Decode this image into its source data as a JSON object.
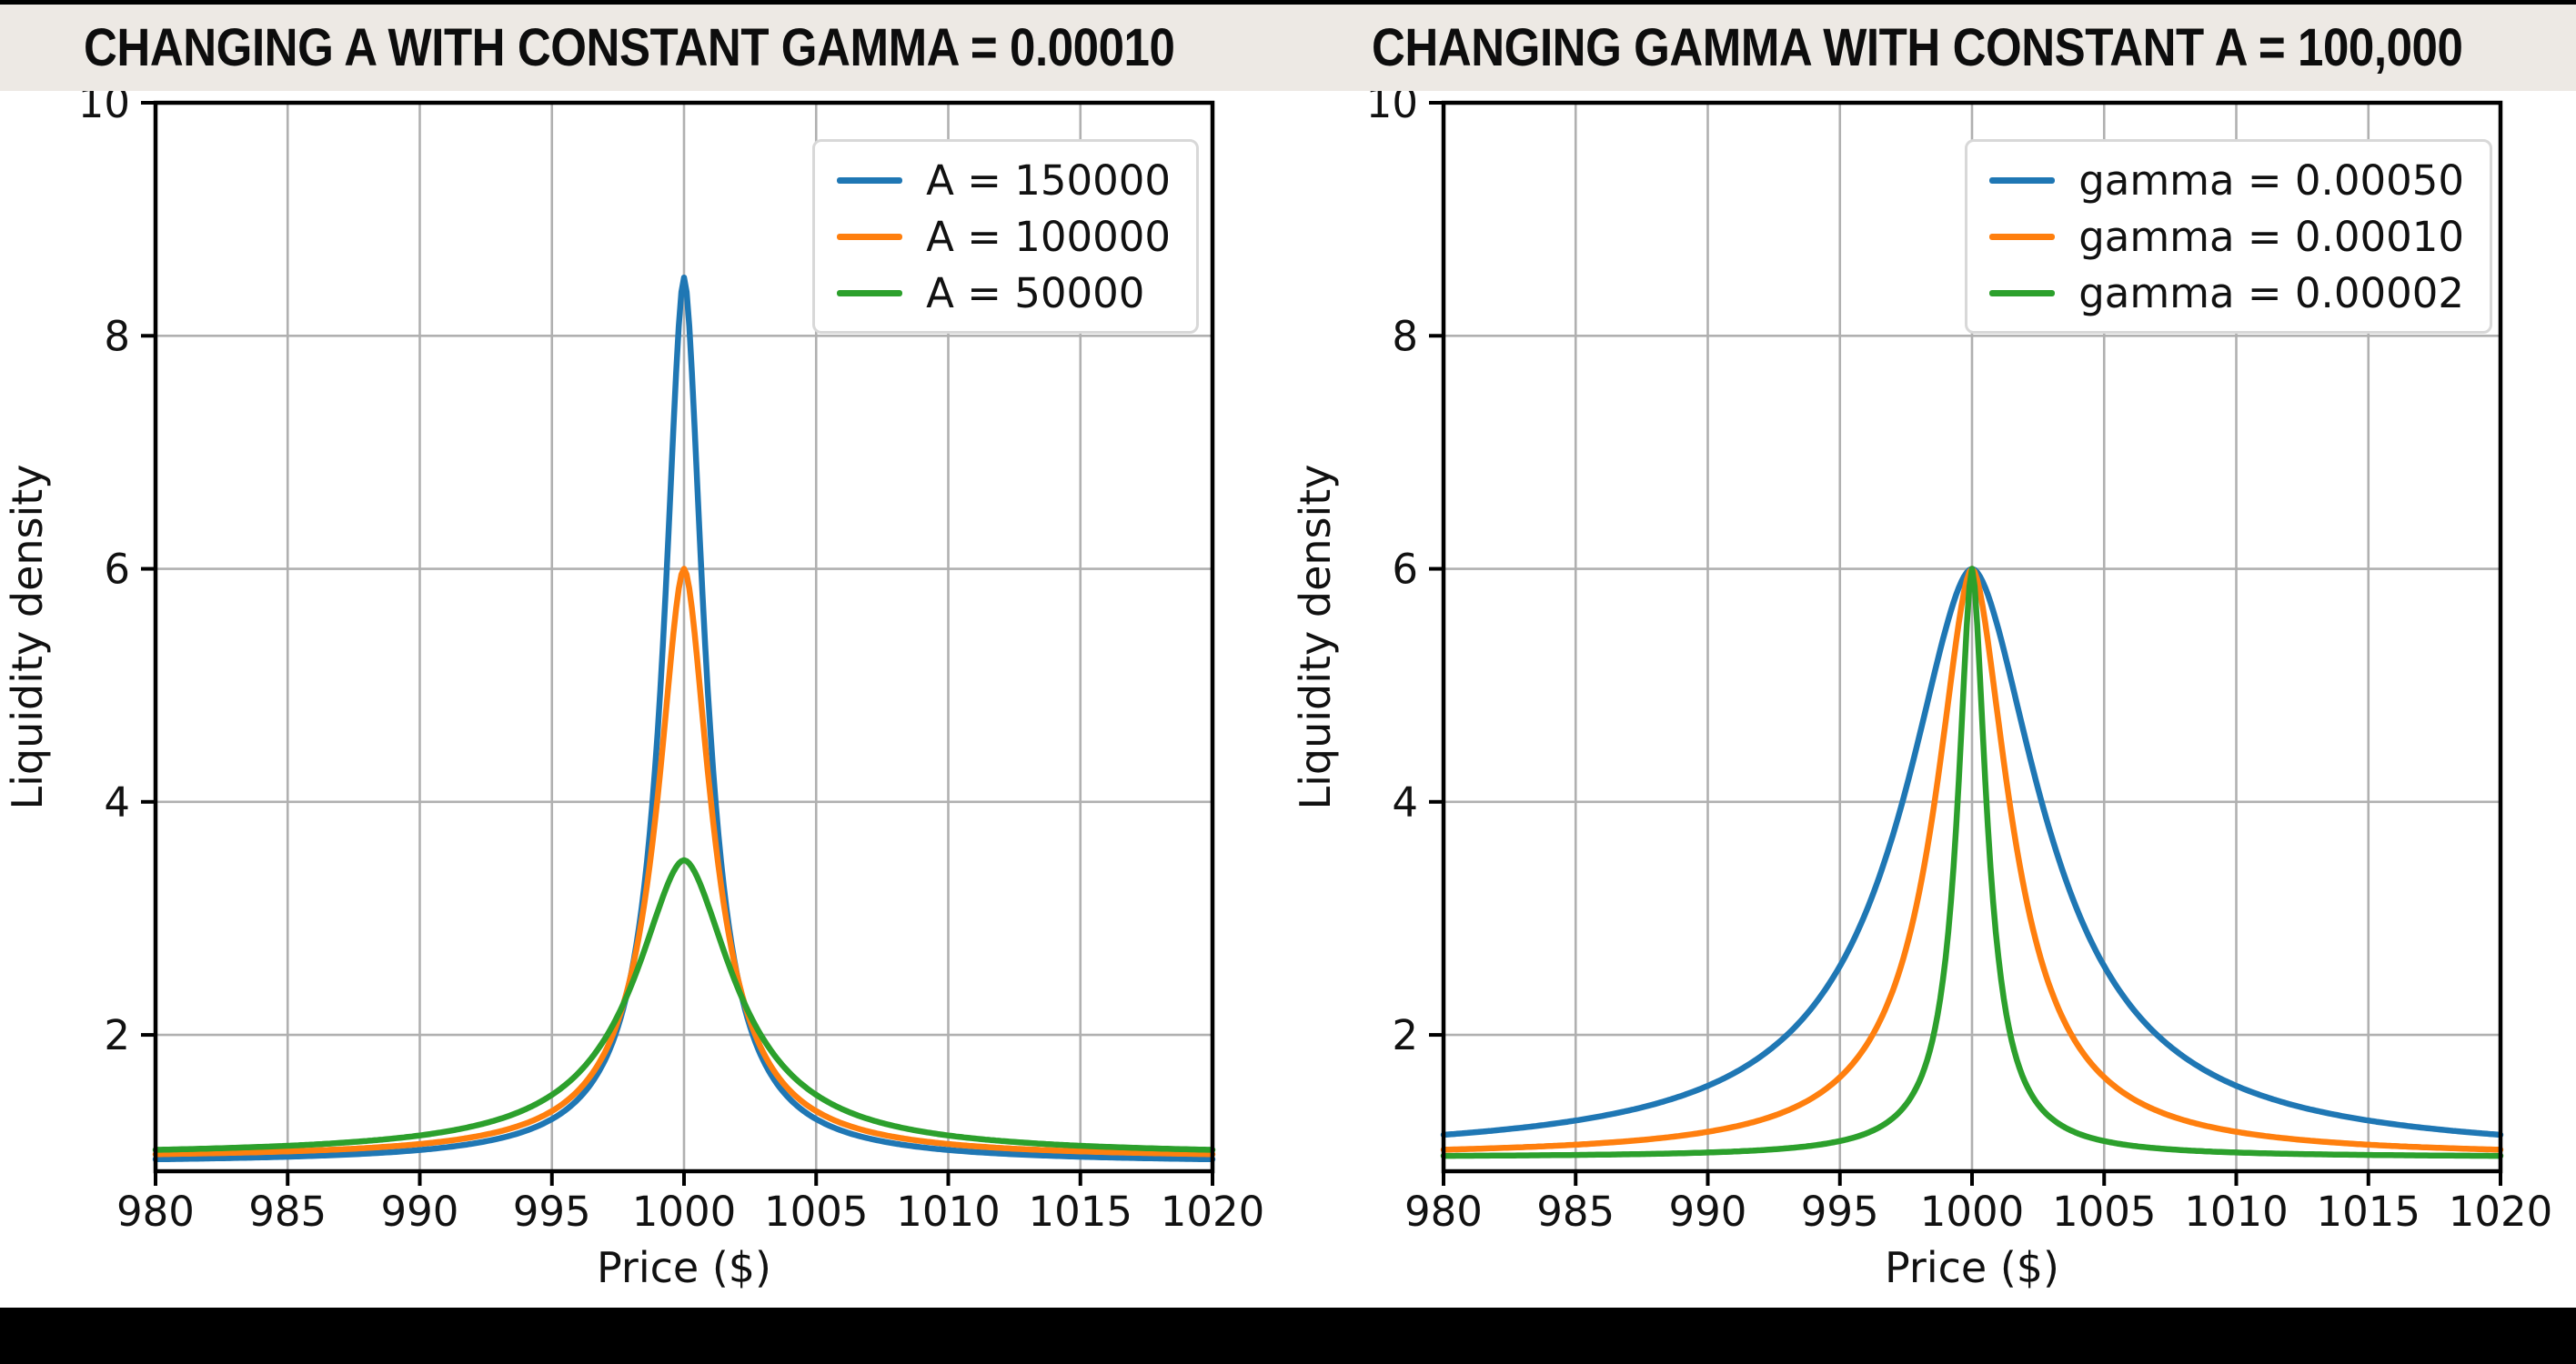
{
  "page": {
    "background": "#ffffff",
    "top_bar_color": "#000000",
    "bottom_bar_color": "#000000",
    "title_band_color": "#ede9e4",
    "text_color": "#111111",
    "grid_color": "#b0b0b0",
    "spine_color": "#000000"
  },
  "chart_data": [
    {
      "type": "line",
      "title": "CHANGING A WITH CONSTANT GAMMA = 0.00010",
      "xlabel": "Price ($)",
      "ylabel": "Liquidity density",
      "xlim": [
        980,
        1020
      ],
      "ylim": [
        0.83,
        10
      ],
      "x_ticks": [
        980,
        985,
        990,
        995,
        1000,
        1005,
        1010,
        1015,
        1020
      ],
      "y_ticks": [
        2,
        4,
        6,
        8,
        10
      ],
      "grid": true,
      "legend_position": "upper right",
      "series": [
        {
          "name": "A = 150000",
          "color": "#1f77b4",
          "peak_x": 1000,
          "peak_y": 8.5,
          "model": {
            "type": "power-lorentzian",
            "center": 1000,
            "peak": 8.5,
            "base": 0.9,
            "width": 0.97,
            "alpha": 1.8
          },
          "x_points": [
            980,
            985,
            990,
            995,
            1000,
            1005,
            1010,
            1015,
            1020
          ],
          "y_points": [
            0.93,
            0.96,
            1.01,
            1.28,
            8.5,
            1.28,
            1.01,
            0.96,
            0.93
          ]
        },
        {
          "name": "A = 100000",
          "color": "#ff7f0e",
          "peak_x": 1000,
          "peak_y": 6.0,
          "model": {
            "type": "power-lorentzian",
            "center": 1000,
            "peak": 6.0,
            "base": 0.94,
            "width": 1.29,
            "alpha": 1.8
          },
          "x_points": [
            980,
            985,
            990,
            995,
            1000,
            1005,
            1010,
            1015,
            1020
          ],
          "y_points": [
            0.98,
            1.0,
            1.06,
            1.35,
            6.0,
            1.35,
            1.06,
            1.0,
            0.98
          ]
        },
        {
          "name": "A = 50000",
          "color": "#2ca02c",
          "peak_x": 1000,
          "peak_y": 3.5,
          "model": {
            "type": "power-lorentzian",
            "center": 1000,
            "peak": 3.5,
            "base": 0.96,
            "width": 2.37,
            "alpha": 1.8
          },
          "x_points": [
            980,
            985,
            990,
            995,
            1000,
            1005,
            1010,
            1015,
            1020
          ],
          "y_points": [
            1.01,
            1.05,
            1.14,
            1.49,
            3.5,
            1.49,
            1.14,
            1.05,
            1.01
          ]
        }
      ]
    },
    {
      "type": "line",
      "title": "CHANGING GAMMA WITH CONSTANT A = 100,000",
      "xlabel": "Price ($)",
      "ylabel": "Liquidity density",
      "xlim": [
        980,
        1020
      ],
      "ylim": [
        0.83,
        10
      ],
      "x_ticks": [
        980,
        985,
        990,
        995,
        1000,
        1005,
        1010,
        1015,
        1020
      ],
      "y_ticks": [
        2,
        4,
        6,
        8,
        10
      ],
      "grid": true,
      "legend_position": "upper right",
      "series": [
        {
          "name": "gamma = 0.00050",
          "color": "#1f77b4",
          "peak_x": 1000,
          "peak_y": 6.0,
          "model": {
            "type": "power-lorentzian",
            "center": 1000,
            "peak": 6.0,
            "base": 0.95,
            "width": 3.33,
            "alpha": 1.8
          },
          "x_points": [
            980,
            985,
            990,
            995,
            1000,
            1005,
            1010,
            1015,
            1020
          ],
          "y_points": [
            1.14,
            1.27,
            1.56,
            2.59,
            6.0,
            2.59,
            1.56,
            1.27,
            1.14
          ]
        },
        {
          "name": "gamma = 0.00010",
          "color": "#ff7f0e",
          "peak_x": 1000,
          "peak_y": 6.0,
          "model": {
            "type": "power-lorentzian",
            "center": 1000,
            "peak": 6.0,
            "base": 0.95,
            "width": 1.79,
            "alpha": 1.8
          },
          "x_points": [
            980,
            985,
            990,
            995,
            1000,
            1005,
            1010,
            1015,
            1020
          ],
          "y_points": [
            1.02,
            1.06,
            1.17,
            1.64,
            6.0,
            1.64,
            1.17,
            1.06,
            1.02
          ]
        },
        {
          "name": "gamma = 0.00002",
          "color": "#2ca02c",
          "peak_x": 1000,
          "peak_y": 6.0,
          "model": {
            "type": "power-lorentzian",
            "center": 1000,
            "peak": 6.0,
            "base": 0.95,
            "width": 0.69,
            "alpha": 1.8
          },
          "x_points": [
            980,
            985,
            990,
            995,
            1000,
            1005,
            1010,
            1015,
            1020
          ],
          "y_points": [
            0.96,
            0.97,
            0.99,
            1.09,
            6.0,
            1.09,
            0.99,
            0.97,
            0.96
          ]
        }
      ]
    }
  ]
}
